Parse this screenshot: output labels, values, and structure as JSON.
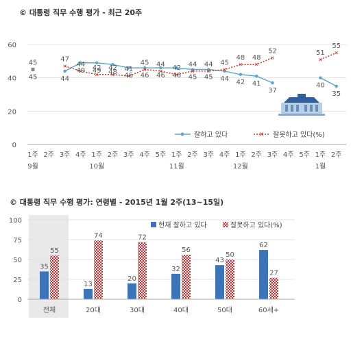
{
  "charts": {
    "trend": {
      "title": "© 대통령 직무 수행 평가 - 최근 20주",
      "type": "line",
      "ylim": [
        0,
        60
      ],
      "yticks": [
        "0",
        "20",
        "40",
        "60"
      ],
      "weeks": [
        "1주",
        "2주",
        "3주",
        "4주",
        "1주",
        "2주",
        "3주",
        "4주",
        "5주",
        "1주",
        "2주",
        "3주",
        "4주",
        "1주",
        "2주",
        "3주",
        "4주",
        "5주",
        "1주",
        "2주"
      ],
      "months": [
        {
          "label": "9월",
          "index": 0
        },
        {
          "label": "10월",
          "index": 4
        },
        {
          "label": "11월",
          "index": 9
        },
        {
          "label": "12월",
          "index": 13
        },
        {
          "label": "1월",
          "index": 18
        }
      ],
      "series": [
        {
          "name": "잘하고 있다",
          "color": "#5fa8c9",
          "values": [
            45,
            null,
            44,
            49,
            49,
            48,
            46,
            46,
            46,
            46,
            45,
            45,
            44,
            42,
            41,
            37,
            null,
            null,
            40,
            35
          ]
        },
        {
          "name": "잘못하고 있다",
          "color": "#c0392b",
          "values": [
            45,
            null,
            47,
            44,
            42,
            42,
            41,
            45,
            44,
            42,
            44,
            44,
            45,
            48,
            48,
            52,
            null,
            null,
            51,
            55
          ]
        }
      ],
      "legend_suffix": "(%)"
    },
    "age": {
      "title": "© 대통령 직무 수행 평가: 연령별 - 2015년 1월 2주(13~15일)",
      "type": "bar",
      "ylim": [
        0,
        100
      ],
      "yticks": [
        "0",
        "25",
        "50",
        "75",
        "100"
      ],
      "categories": [
        "전체",
        "20대",
        "30대",
        "40대",
        "50대",
        "60세+"
      ],
      "series": [
        {
          "name": "현재 잘하고 있다",
          "color": "#3f73b8",
          "values": [
            35,
            13,
            20,
            32,
            43,
            62
          ]
        },
        {
          "name": "잘못하고 있다",
          "color": "#c0504d",
          "values": [
            55,
            74,
            72,
            56,
            50,
            27
          ]
        }
      ],
      "legend_suffix": "(%)"
    }
  }
}
